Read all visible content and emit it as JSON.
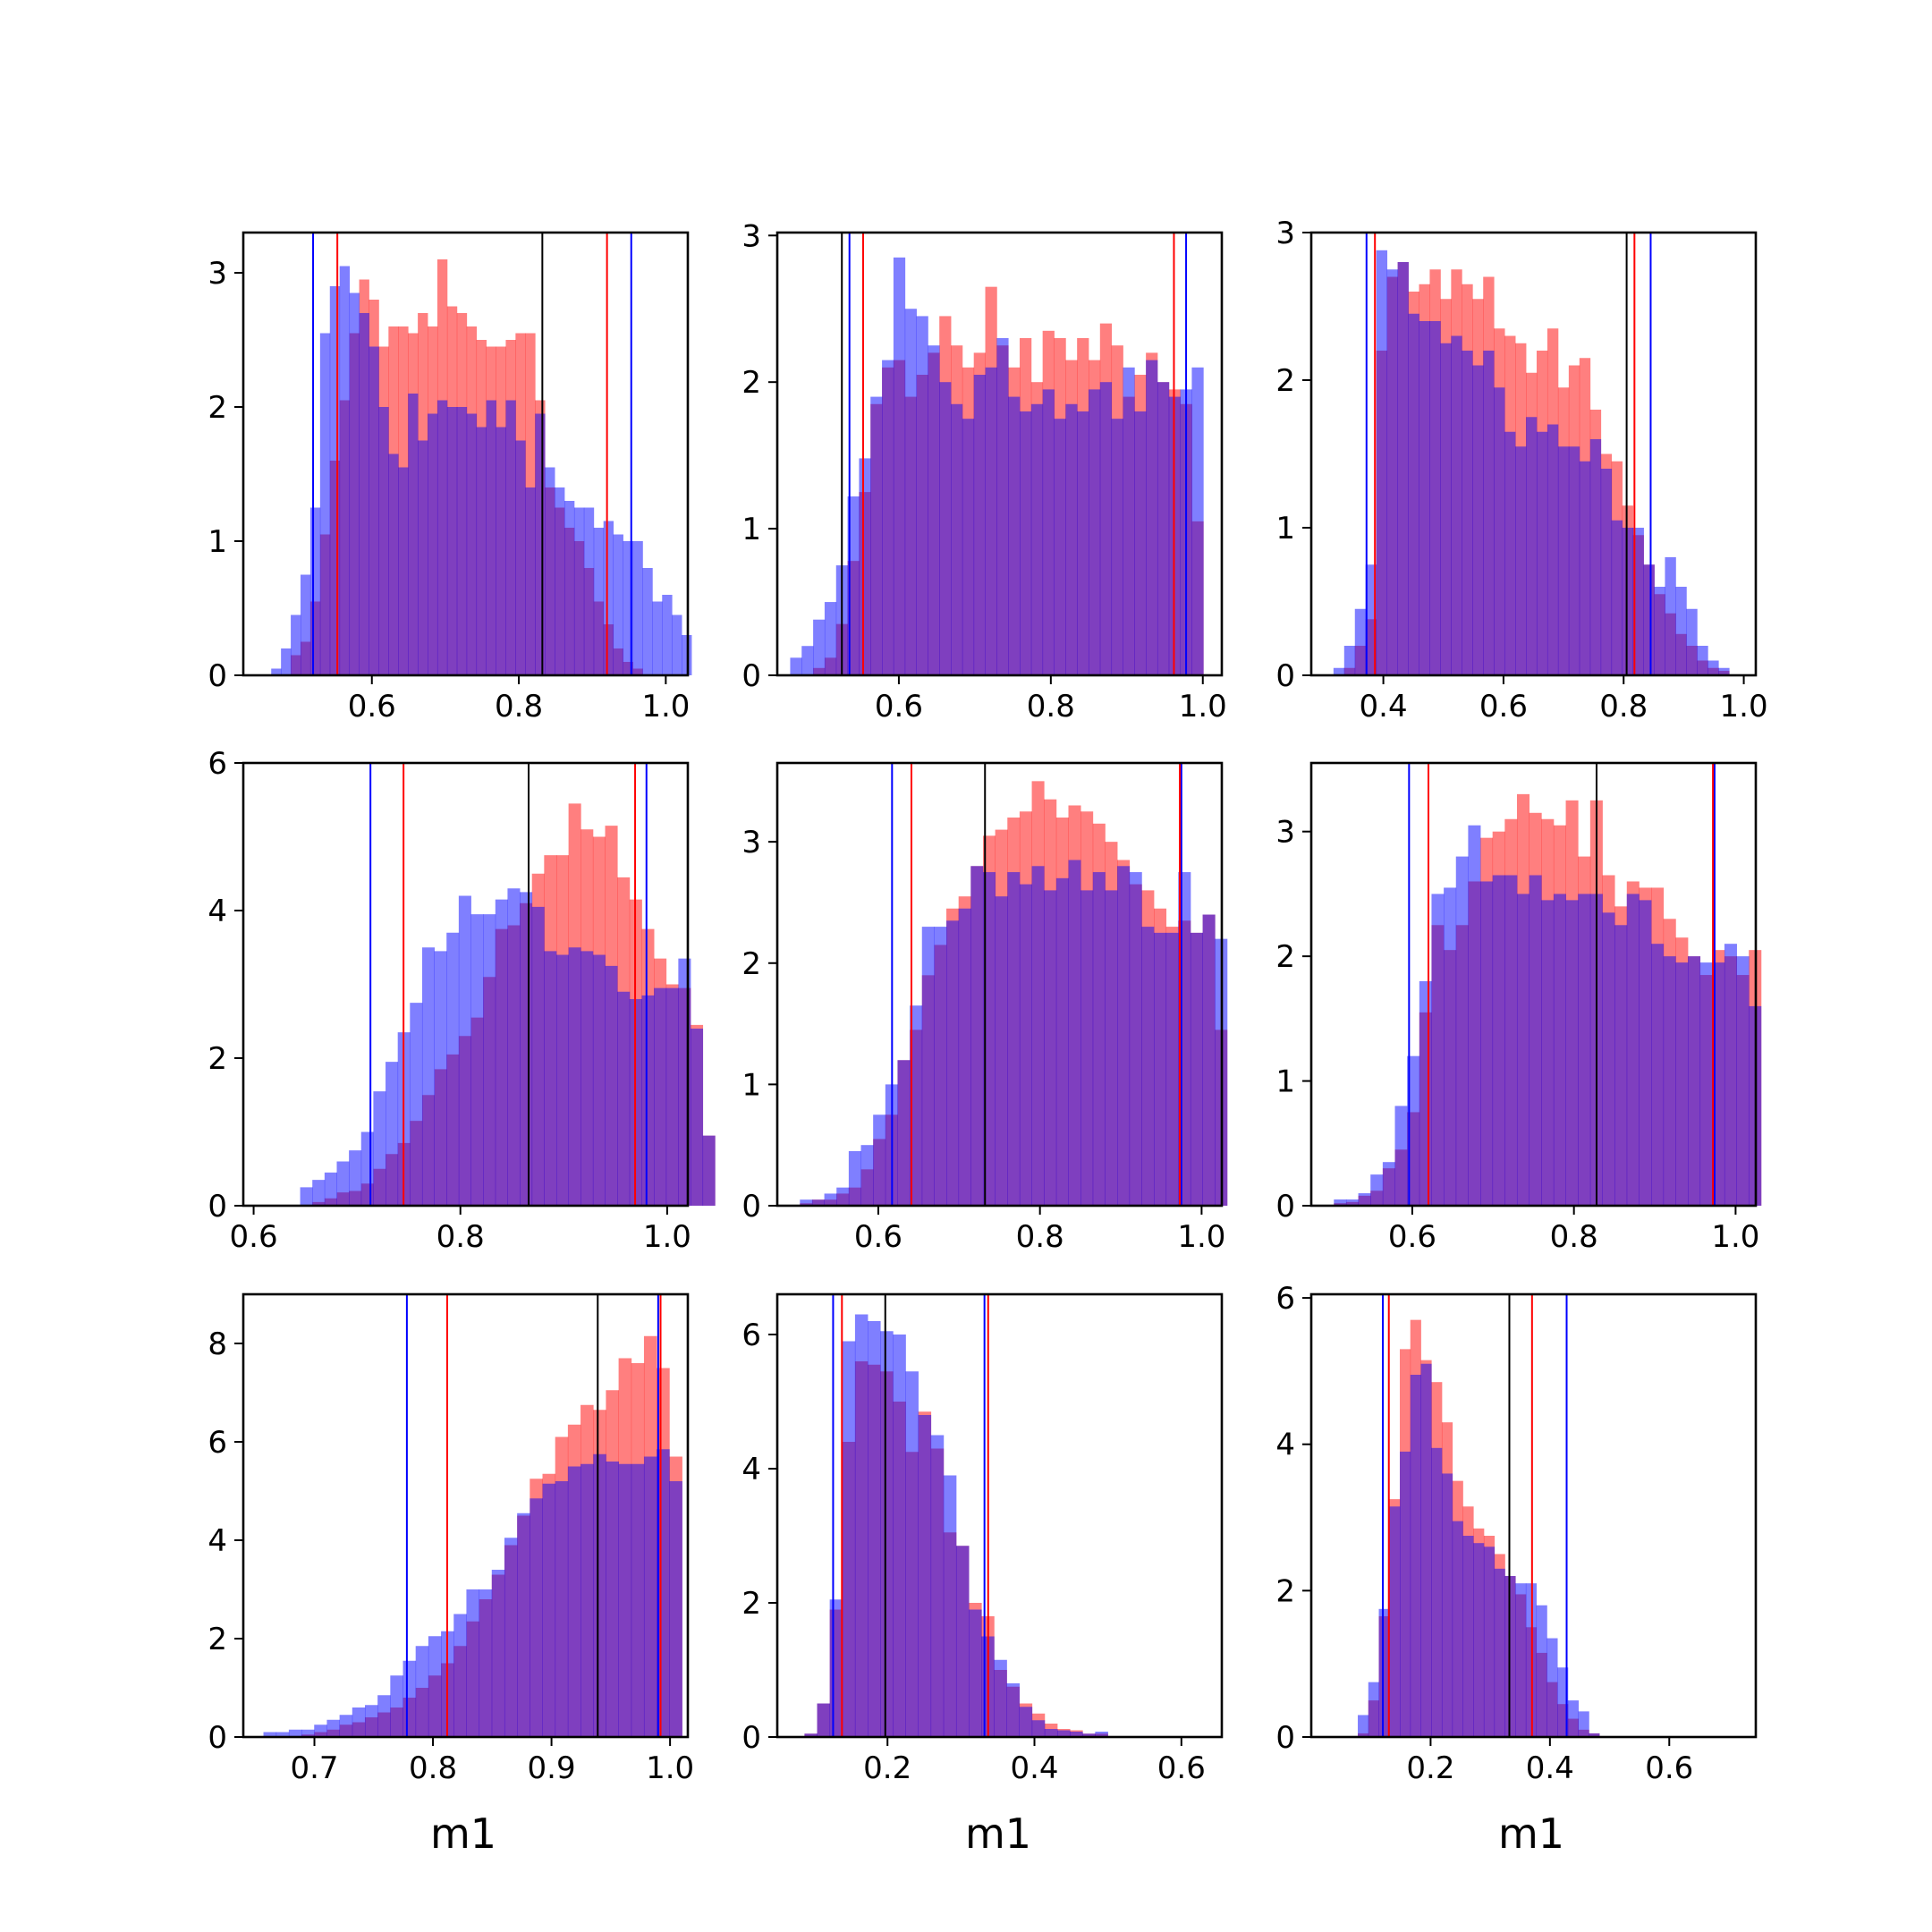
{
  "figure": {
    "colors": {
      "red": "#ff0000",
      "blue": "#0000ff",
      "overlap": "#7f3fbf",
      "frame": "#000000"
    },
    "xlabels": [
      "m1",
      "m1",
      "m1"
    ]
  },
  "chart_data": [
    {
      "type": "histogram",
      "panel": 1,
      "xlim": [
        0.425,
        1.03
      ],
      "ylim": [
        0,
        3.3
      ],
      "xticks": [
        0.6,
        0.8,
        1.0
      ],
      "xtick_labels": [
        "0.6",
        "0.8",
        "1.0"
      ],
      "yticks": [
        0,
        1,
        2,
        3
      ],
      "ytick_labels": [
        "0",
        "1",
        "2",
        "3"
      ],
      "bin_start": 0.463,
      "bin_width": 0.0133,
      "red_values": [
        0,
        0,
        0.15,
        0.25,
        0.55,
        1.05,
        1.6,
        2.05,
        2.55,
        2.95,
        2.8,
        2.45,
        2.6,
        2.6,
        2.55,
        2.7,
        2.6,
        3.1,
        2.75,
        2.7,
        2.6,
        2.5,
        2.45,
        2.45,
        2.5,
        2.55,
        2.55,
        2.05,
        1.4,
        1.25,
        1.1,
        1.0,
        0.8,
        0.55,
        0.38,
        0.2,
        0.1,
        0.05,
        0
      ],
      "blue_values": [
        0.05,
        0.2,
        0.45,
        0.75,
        1.25,
        2.55,
        2.9,
        3.05,
        2.85,
        2.7,
        2.45,
        2.0,
        1.65,
        1.55,
        2.1,
        1.75,
        1.95,
        2.05,
        2.0,
        2.0,
        1.95,
        1.85,
        2.05,
        1.85,
        2.05,
        1.75,
        1.4,
        1.95,
        1.55,
        1.4,
        1.3,
        1.25,
        1.25,
        1.1,
        1.15,
        1.05,
        1.0,
        1.0,
        0.8,
        0.55,
        0.6,
        0.45,
        0.3
      ],
      "blue_lines": [
        0.52,
        0.953
      ],
      "red_lines": [
        0.553,
        0.92
      ],
      "black_lines": [
        0.832
      ]
    },
    {
      "type": "histogram",
      "panel": 2,
      "xlim": [
        0.44,
        1.025
      ],
      "ylim": [
        0,
        3.02
      ],
      "xticks": [
        0.6,
        0.8,
        1.0
      ],
      "xtick_labels": [
        "0.6",
        "0.8",
        "1.0"
      ],
      "yticks": [
        0,
        1,
        2,
        3
      ],
      "ytick_labels": [
        "0",
        "1",
        "2",
        "3"
      ],
      "bin_start": 0.457,
      "bin_width": 0.0151,
      "red_values": [
        0,
        0,
        0.05,
        0.12,
        0.35,
        0.78,
        1.25,
        1.85,
        2.1,
        2.15,
        1.9,
        2.05,
        2.2,
        2.45,
        2.25,
        2.1,
        2.2,
        2.65,
        2.25,
        2.1,
        2.3,
        2.0,
        2.35,
        2.3,
        2.15,
        2.3,
        2.15,
        2.4,
        2.25,
        1.9,
        2.05,
        2.2,
        2.0,
        1.95,
        1.85,
        1.05
      ],
      "blue_values": [
        0.12,
        0.2,
        0.38,
        0.5,
        0.75,
        1.22,
        1.48,
        1.9,
        2.15,
        2.85,
        2.5,
        2.45,
        2.25,
        2.0,
        1.85,
        1.75,
        2.05,
        2.1,
        2.3,
        1.9,
        1.8,
        1.85,
        1.95,
        1.75,
        1.85,
        1.8,
        1.95,
        2.0,
        1.75,
        2.1,
        1.8,
        2.15,
        2.0,
        1.9,
        1.95,
        2.1
      ],
      "blue_lines": [
        0.535,
        0.978
      ],
      "red_lines": [
        0.553,
        0.962
      ],
      "black_lines": [
        0.525
      ]
    },
    {
      "type": "histogram",
      "panel": 3,
      "xlim": [
        0.28,
        1.02
      ],
      "ylim": [
        0,
        3.0
      ],
      "xticks": [
        0.4,
        0.6,
        0.8,
        1.0
      ],
      "xtick_labels": [
        "0.4",
        "0.6",
        "0.8",
        "1.0"
      ],
      "yticks": [
        0,
        1,
        2,
        3
      ],
      "ytick_labels": [
        "0",
        "1",
        "2",
        "3"
      ],
      "bin_start": 0.317,
      "bin_width": 0.0178,
      "red_values": [
        0,
        0.05,
        0.2,
        0.38,
        2.2,
        2.7,
        2.8,
        2.6,
        2.65,
        2.75,
        2.55,
        2.75,
        2.65,
        2.55,
        2.7,
        2.35,
        2.3,
        2.25,
        2.05,
        2.2,
        2.35,
        1.95,
        2.1,
        2.15,
        1.8,
        1.5,
        1.45,
        1.15,
        0.95,
        0.75,
        0.55,
        0.42,
        0.28,
        0.2,
        0.1,
        0.05,
        0.03
      ],
      "blue_values": [
        0.05,
        0.2,
        0.45,
        0.75,
        2.88,
        2.75,
        2.8,
        2.45,
        2.4,
        2.4,
        2.25,
        2.3,
        2.2,
        2.1,
        2.2,
        1.95,
        1.65,
        1.55,
        1.75,
        1.65,
        1.7,
        1.55,
        1.55,
        1.45,
        1.6,
        1.4,
        1.05,
        1.0,
        1.0,
        0.75,
        0.6,
        0.8,
        0.6,
        0.45,
        0.2,
        0.1,
        0.05
      ],
      "blue_lines": [
        0.372,
        0.845
      ],
      "red_lines": [
        0.386,
        0.818
      ],
      "black_lines": [
        0.805
      ]
    },
    {
      "type": "histogram",
      "panel": 4,
      "xlim": [
        0.59,
        1.02
      ],
      "ylim": [
        0,
        6.0
      ],
      "xticks": [
        0.6,
        0.8,
        1.0
      ],
      "xtick_labels": [
        "0.6",
        "0.8",
        "1.0"
      ],
      "yticks": [
        0,
        2,
        4,
        6
      ],
      "ytick_labels": [
        "0",
        "2",
        "4",
        "6"
      ],
      "bin_start": 0.645,
      "bin_width": 0.0118,
      "red_values": [
        0,
        0.05,
        0.1,
        0.18,
        0.2,
        0.3,
        0.5,
        0.7,
        0.85,
        1.15,
        1.5,
        1.85,
        2.05,
        2.3,
        2.55,
        3.1,
        3.75,
        3.8,
        4.1,
        4.5,
        4.75,
        4.75,
        5.45,
        5.1,
        5.0,
        5.15,
        4.45,
        4.15,
        3.75,
        3.35,
        3.0,
        2.95,
        2.45,
        0.95
      ],
      "blue_values": [
        0.25,
        0.35,
        0.45,
        0.6,
        0.75,
        1.0,
        1.55,
        1.95,
        2.35,
        2.75,
        3.5,
        3.45,
        3.7,
        4.2,
        3.95,
        3.95,
        4.15,
        4.3,
        4.25,
        4.05,
        3.45,
        3.4,
        3.5,
        3.45,
        3.4,
        3.25,
        2.9,
        2.8,
        2.85,
        2.95,
        2.95,
        3.35,
        2.4,
        0.95
      ],
      "blue_lines": [
        0.713,
        0.98
      ],
      "red_lines": [
        0.745,
        0.969
      ],
      "black_lines": [
        0.866
      ]
    },
    {
      "type": "histogram",
      "panel": 5,
      "xlim": [
        0.475,
        1.025
      ],
      "ylim": [
        0,
        3.65
      ],
      "xticks": [
        0.6,
        0.8,
        1.0
      ],
      "xtick_labels": [
        "0.6",
        "0.8",
        "1.0"
      ],
      "yticks": [
        0,
        1,
        2,
        3
      ],
      "ytick_labels": [
        "0",
        "1",
        "2",
        "3"
      ],
      "bin_start": 0.503,
      "bin_width": 0.0151,
      "red_values": [
        0.02,
        0.05,
        0.05,
        0.1,
        0.15,
        0.3,
        0.55,
        0.75,
        1.2,
        1.45,
        1.9,
        2.15,
        2.45,
        2.55,
        2.8,
        3.05,
        3.1,
        3.2,
        3.25,
        3.5,
        3.35,
        3.2,
        3.3,
        3.25,
        3.15,
        3.0,
        2.85,
        2.65,
        2.6,
        2.45,
        2.3,
        2.35,
        2.25,
        2.4,
        1.45
      ],
      "blue_values": [
        0.05,
        0.05,
        0.1,
        0.15,
        0.45,
        0.5,
        0.75,
        1.0,
        1.2,
        1.65,
        2.3,
        2.3,
        2.35,
        2.45,
        2.8,
        2.75,
        2.55,
        2.75,
        2.65,
        2.8,
        2.6,
        2.7,
        2.85,
        2.6,
        2.75,
        2.6,
        2.8,
        2.75,
        2.3,
        2.25,
        2.25,
        2.75,
        2.25,
        2.4,
        2.2
      ],
      "blue_lines": [
        0.617,
        0.975
      ],
      "red_lines": [
        0.641,
        0.973
      ],
      "black_lines": [
        0.732
      ]
    },
    {
      "type": "histogram",
      "panel": 6,
      "xlim": [
        0.475,
        1.025
      ],
      "ylim": [
        0,
        3.55
      ],
      "xticks": [
        0.6,
        0.8,
        1.0
      ],
      "xtick_labels": [
        "0.6",
        "0.8",
        "1.0"
      ],
      "yticks": [
        0,
        1,
        2,
        3
      ],
      "ytick_labels": [
        "0",
        "1",
        "2",
        "3"
      ],
      "bin_start": 0.503,
      "bin_width": 0.0151,
      "red_values": [
        0.02,
        0.03,
        0.08,
        0.12,
        0.3,
        0.45,
        0.75,
        1.55,
        2.25,
        2.05,
        2.25,
        2.6,
        2.95,
        3.0,
        3.1,
        3.3,
        3.15,
        3.1,
        3.05,
        3.25,
        2.8,
        3.25,
        2.65,
        2.4,
        2.6,
        2.55,
        2.55,
        2.3,
        2.15,
        2.0,
        1.85,
        2.05,
        2.0,
        1.85,
        2.05
      ],
      "blue_values": [
        0.05,
        0.05,
        0.1,
        0.25,
        0.35,
        0.8,
        1.2,
        1.8,
        2.5,
        2.55,
        2.8,
        3.05,
        2.6,
        2.65,
        2.65,
        2.5,
        2.65,
        2.45,
        2.5,
        2.45,
        2.5,
        2.5,
        2.35,
        2.25,
        2.5,
        2.45,
        2.1,
        2.0,
        1.95,
        2.0,
        1.95,
        1.95,
        2.1,
        2.0,
        1.6
      ],
      "blue_lines": [
        0.596,
        0.974
      ],
      "red_lines": [
        0.62,
        0.972
      ],
      "black_lines": [
        0.828
      ]
    },
    {
      "type": "histogram",
      "panel": 7,
      "xlim": [
        0.64,
        1.015
      ],
      "ylim": [
        0,
        9.0
      ],
      "xticks": [
        0.7,
        0.8,
        0.9,
        1.0
      ],
      "xtick_labels": [
        "0.7",
        "0.8",
        "0.9",
        "1.0"
      ],
      "yticks": [
        0,
        2,
        4,
        6,
        8
      ],
      "ytick_labels": [
        "0",
        "2",
        "4",
        "6",
        "8"
      ],
      "bin_start": 0.657,
      "bin_width": 0.0107,
      "red_values": [
        0,
        0,
        0.02,
        0.05,
        0.1,
        0.15,
        0.25,
        0.3,
        0.4,
        0.5,
        0.6,
        0.8,
        1.0,
        1.25,
        1.5,
        1.85,
        2.35,
        2.8,
        3.3,
        3.9,
        4.5,
        5.25,
        5.35,
        6.1,
        6.35,
        6.75,
        6.65,
        7.05,
        7.7,
        7.6,
        8.15,
        7.5,
        5.7
      ],
      "blue_values": [
        0.1,
        0.1,
        0.15,
        0.15,
        0.25,
        0.35,
        0.45,
        0.6,
        0.65,
        0.85,
        1.25,
        1.55,
        1.85,
        2.05,
        2.15,
        2.5,
        3.0,
        3.0,
        3.4,
        4.05,
        4.55,
        4.85,
        5.15,
        5.2,
        5.5,
        5.55,
        5.75,
        5.6,
        5.55,
        5.55,
        5.7,
        5.85,
        5.2
      ],
      "blue_lines": [
        0.778,
        0.99
      ],
      "red_lines": [
        0.812,
        0.992
      ],
      "black_lines": [
        0.939
      ]
    },
    {
      "type": "histogram",
      "panel": 8,
      "xlim": [
        0.05,
        0.655
      ],
      "ylim": [
        0,
        6.6
      ],
      "xticks": [
        0.2,
        0.4,
        0.6
      ],
      "xtick_labels": [
        "0.2",
        "0.4",
        "0.6"
      ],
      "yticks": [
        0,
        2,
        4,
        6
      ],
      "ytick_labels": [
        "0",
        "2",
        "4",
        "6"
      ],
      "bin_start": 0.087,
      "bin_width": 0.0172,
      "red_values": [
        0.05,
        0.5,
        1.9,
        4.4,
        5.6,
        5.55,
        5.45,
        5.0,
        4.25,
        4.85,
        4.3,
        3.05,
        2.85,
        2.0,
        1.8,
        1.0,
        0.75,
        0.5,
        0.35,
        0.2,
        0.12,
        0.1,
        0.05,
        0.05
      ],
      "blue_values": [
        0.05,
        0.5,
        2.05,
        5.9,
        6.3,
        6.2,
        6.05,
        6.0,
        5.45,
        4.8,
        4.5,
        3.9,
        2.85,
        1.9,
        1.5,
        1.15,
        0.8,
        0.45,
        0.25,
        0.12,
        0.1,
        0.08,
        0.05,
        0.08
      ],
      "blue_lines": [
        0.126,
        0.332
      ],
      "red_lines": [
        0.138,
        0.337
      ],
      "black_lines": [
        0.197
      ]
    },
    {
      "type": "histogram",
      "panel": 9,
      "xlim": [
        0.0,
        0.745
      ],
      "ylim": [
        0,
        6.05
      ],
      "xticks": [
        0.2,
        0.4,
        0.6
      ],
      "xtick_labels": [
        "0.2",
        "0.4",
        "0.6"
      ],
      "yticks": [
        0,
        2,
        4,
        6
      ],
      "ytick_labels": [
        "0",
        "2",
        "4",
        "6"
      ],
      "bin_start": 0.078,
      "bin_width": 0.0176,
      "red_values": [
        0.05,
        0.5,
        1.65,
        3.25,
        5.3,
        5.7,
        5.15,
        4.85,
        4.3,
        3.5,
        3.15,
        2.85,
        2.75,
        2.5,
        2.2,
        1.95,
        1.5,
        1.15,
        0.75,
        0.45,
        0.25,
        0.1,
        0.05
      ],
      "blue_values": [
        0.3,
        0.75,
        1.75,
        3.15,
        3.9,
        4.95,
        5.1,
        3.95,
        3.6,
        2.95,
        2.75,
        2.65,
        2.6,
        2.3,
        2.2,
        2.1,
        2.1,
        1.8,
        1.35,
        0.95,
        0.5,
        0.35,
        0.05
      ],
      "blue_lines": [
        0.12,
        0.428
      ],
      "red_lines": [
        0.13,
        0.37
      ],
      "black_lines": [
        0.332
      ]
    }
  ]
}
